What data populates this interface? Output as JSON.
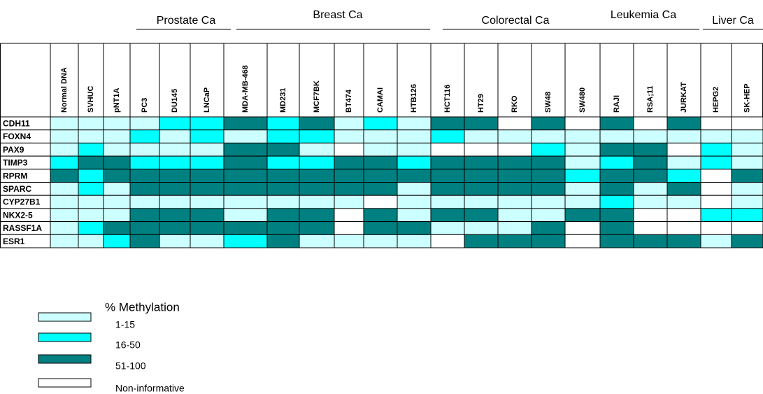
{
  "groups": [
    {
      "label": "Prostate Ca"
    },
    {
      "label": "Breast Ca"
    },
    {
      "label": "Colorectal Ca"
    },
    {
      "label": "Leukemia Ca"
    },
    {
      "label": "Liver Ca"
    }
  ],
  "columns": [
    "Normal DNA",
    "SVHUC",
    "pNT1A",
    "PC3",
    "DU145",
    "LNCaP",
    "MDA-MB-468",
    "MD231",
    "MCF7BK",
    "BT474",
    "CAMAI",
    "HTB126",
    "HCT116",
    "HT29",
    "RKO",
    "SW48",
    "SW480",
    "RAJI",
    "RSA;11",
    "JURKAT",
    "HEPG2",
    "SK-HEP"
  ],
  "rows": [
    {
      "label": "CDH11",
      "cells": [
        0,
        0,
        0,
        0,
        1,
        1,
        2,
        1,
        2,
        0,
        1,
        0,
        2,
        2,
        3,
        2,
        3,
        2,
        3,
        2,
        3,
        3
      ]
    },
    {
      "label": "FOXN4",
      "cells": [
        0,
        0,
        0,
        1,
        0,
        1,
        0,
        1,
        1,
        0,
        0,
        0,
        1,
        0,
        0,
        0,
        0,
        0,
        0,
        0,
        0,
        0
      ]
    },
    {
      "label": "PAX9",
      "cells": [
        0,
        1,
        0,
        0,
        0,
        0,
        2,
        2,
        0,
        3,
        0,
        0,
        3,
        3,
        3,
        1,
        0,
        2,
        2,
        3,
        1,
        0
      ]
    },
    {
      "label": "TIMP3",
      "cells": [
        1,
        2,
        2,
        1,
        1,
        1,
        2,
        1,
        1,
        2,
        2,
        1,
        2,
        2,
        2,
        2,
        0,
        1,
        2,
        0,
        1,
        0
      ]
    },
    {
      "label": "RPRM",
      "cells": [
        2,
        1,
        2,
        2,
        2,
        2,
        2,
        2,
        2,
        2,
        2,
        2,
        2,
        2,
        2,
        2,
        1,
        2,
        2,
        1,
        3,
        2
      ]
    },
    {
      "label": "SPARC",
      "cells": [
        0,
        1,
        0,
        2,
        2,
        2,
        2,
        2,
        2,
        2,
        2,
        0,
        2,
        2,
        2,
        2,
        0,
        2,
        0,
        2,
        3,
        0
      ]
    },
    {
      "label": "CYP27B1",
      "cells": [
        0,
        0,
        0,
        0,
        0,
        0,
        0,
        0,
        0,
        0,
        3,
        0,
        0,
        0,
        0,
        0,
        0,
        1,
        0,
        0,
        3,
        0
      ]
    },
    {
      "label": "NKX2-5",
      "cells": [
        0,
        0,
        0,
        2,
        2,
        2,
        0,
        2,
        2,
        3,
        2,
        0,
        2,
        2,
        0,
        0,
        2,
        2,
        3,
        3,
        1,
        1
      ]
    },
    {
      "label": "RASSF1A",
      "cells": [
        0,
        1,
        2,
        2,
        2,
        2,
        2,
        2,
        2,
        3,
        2,
        2,
        0,
        0,
        0,
        2,
        3,
        2,
        3,
        3,
        3,
        3
      ]
    },
    {
      "label": "ESR1",
      "cells": [
        0,
        0,
        1,
        2,
        0,
        0,
        1,
        2,
        0,
        0,
        0,
        0,
        3,
        2,
        2,
        2,
        3,
        2,
        2,
        2,
        0,
        2
      ]
    }
  ],
  "legend": {
    "title": "% Methylation",
    "items": [
      {
        "label": "1-15",
        "color": "#ccffff"
      },
      {
        "label": "16-50",
        "color": "#00ffff"
      },
      {
        "label": "51-100",
        "color": "#008080"
      },
      {
        "label": "Non-informative",
        "color": "#ffffff"
      }
    ]
  }
}
